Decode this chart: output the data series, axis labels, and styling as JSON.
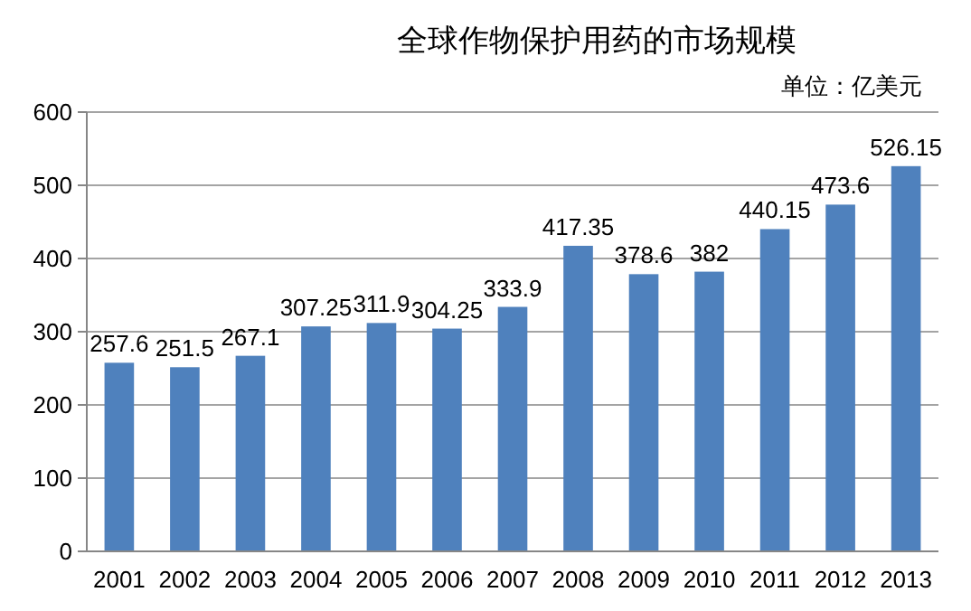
{
  "chart_data": {
    "type": "bar",
    "title": "全球作物保护用药的市场规模",
    "subtitle": "单位：亿美元",
    "categories": [
      "2001",
      "2002",
      "2003",
      "2004",
      "2005",
      "2006",
      "2007",
      "2008",
      "2009",
      "2010",
      "2011",
      "2012",
      "2013"
    ],
    "values": [
      257.6,
      251.5,
      267.1,
      307.25,
      311.9,
      304.25,
      333.9,
      417.35,
      378.6,
      382,
      440.15,
      473.6,
      526.15
    ],
    "color": "#4f81bd",
    "ylim": [
      0,
      600
    ],
    "yticks": [
      0,
      100,
      200,
      300,
      400,
      500,
      600
    ],
    "grid": "y",
    "data_labels": true
  }
}
